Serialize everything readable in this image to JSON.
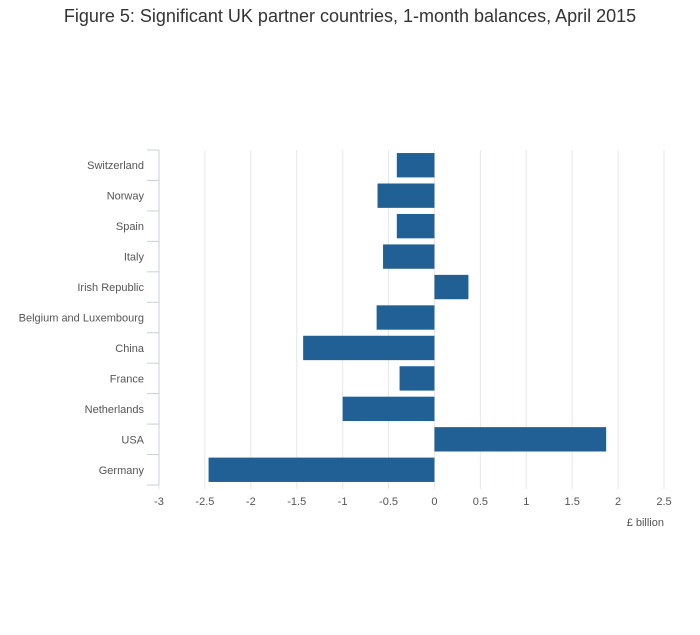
{
  "chart_data": {
    "type": "bar",
    "orientation": "horizontal",
    "title": "Figure 5: Significant UK partner countries, 1-month balances, April 2015",
    "xlabel": "£ billion",
    "categories": [
      "Switzerland",
      "Norway",
      "Spain",
      "Italy",
      "Irish Republic",
      "Belgium and Luxembourg",
      "China",
      "France",
      "Netherlands",
      "USA",
      "Germany"
    ],
    "values": [
      -0.41,
      -0.62,
      -0.41,
      -0.56,
      0.37,
      -0.63,
      -1.43,
      -0.38,
      -1.0,
      1.87,
      -2.46
    ],
    "xlim": [
      -3,
      2.5
    ],
    "xticks": [
      "-3",
      "-2.5",
      "-2",
      "-1.5",
      "-1",
      "-0.5",
      "0",
      "0.5",
      "1",
      "1.5",
      "2",
      "2.5"
    ],
    "grid": true,
    "colors": {
      "bar": "#206095",
      "grid": "#e3e8ec",
      "axis": "#c8d0d8"
    }
  }
}
